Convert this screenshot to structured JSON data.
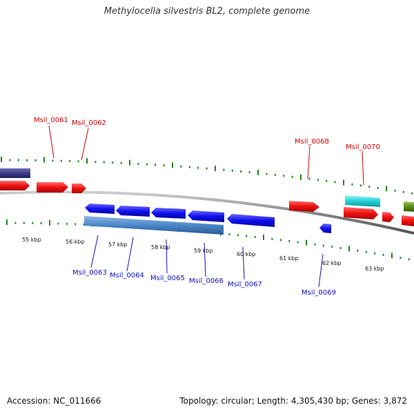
{
  "title": "Methylocella silvestris BL2, complete genome",
  "footer": {
    "accession": "Accession: NC_011666",
    "summary": "Topology: circular; Length: 4,305,430 bp; Genes: 3,872"
  },
  "colors": {
    "forward": "#ee1111",
    "reverse": "#1010ee",
    "label_forward": "#cc0000",
    "label_reverse": "#1010bb",
    "highlight_blue": "#4a86c8",
    "cyan": "#22cfd8",
    "navy": "#3a3a8a",
    "olive": "#5a8a1a",
    "tick": "#1a8a1a",
    "backbone": "#888888"
  },
  "scale_labels": [
    "55 kbp",
    "56 kbp",
    "57 kbp",
    "58 kbp",
    "59 kbp",
    "60 kbp",
    "61 kbp",
    "62 kbp",
    "63 kbp"
  ],
  "gene_labels_forward": [
    "Msil_0061",
    "Msil_0062",
    "Msil_0068",
    "Msil_0070"
  ],
  "gene_labels_reverse": [
    "Msil_0063",
    "Msil_0064",
    "Msil_0065",
    "Msil_0066",
    "Msil_0067",
    "Msil_0069"
  ]
}
